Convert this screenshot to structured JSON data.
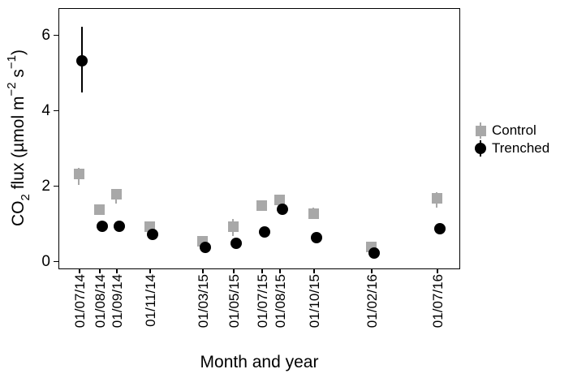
{
  "figure": {
    "ylabel_parts": [
      {
        "text": "CO"
      },
      {
        "text": "2",
        "script": "sub"
      },
      {
        "text": " flux ("
      },
      {
        "text": "µmol m"
      },
      {
        "text": "−2",
        "script": "sup"
      },
      {
        "text": " s"
      },
      {
        "text": "−1",
        "script": "sup"
      },
      {
        "text": ")"
      }
    ]
  },
  "chart_data": {
    "type": "scatter",
    "title": "",
    "xlabel": "Month and year",
    "ylabel": "CO2 flux (µmol m−2 s−1)",
    "categories": [
      "01/07/14",
      "01/08/14",
      "01/09/14",
      "01/11/14",
      "01/03/15",
      "01/05/15",
      "01/07/15",
      "01/08/15",
      "01/10/15",
      "01/02/16",
      "01/07/16"
    ],
    "yticks": [
      0,
      2,
      4,
      6
    ],
    "ylim": [
      -0.2,
      6.7
    ],
    "grid": false,
    "legend_position": "right",
    "series": [
      {
        "name": "Control",
        "marker": "square",
        "color": "#a8a8a8",
        "values": [
          2.35,
          1.4,
          1.8,
          0.95,
          0.55,
          0.95,
          1.5,
          1.65,
          1.3,
          0.4,
          1.7
        ],
        "error_bars": [
          [
            2.05,
            2.5
          ],
          null,
          [
            1.55,
            1.9
          ],
          null,
          null,
          [
            0.7,
            1.15
          ],
          null,
          null,
          [
            1.15,
            1.45
          ],
          null,
          [
            1.45,
            1.85
          ]
        ]
      },
      {
        "name": "Trenched",
        "marker": "circle",
        "color": "#000000",
        "values": [
          5.35,
          0.95,
          0.95,
          0.75,
          0.4,
          0.5,
          0.8,
          1.4,
          0.65,
          0.25,
          0.9
        ],
        "error_bars": [
          [
            4.5,
            6.25
          ],
          null,
          null,
          null,
          null,
          null,
          null,
          null,
          null,
          null,
          null
        ]
      }
    ]
  }
}
